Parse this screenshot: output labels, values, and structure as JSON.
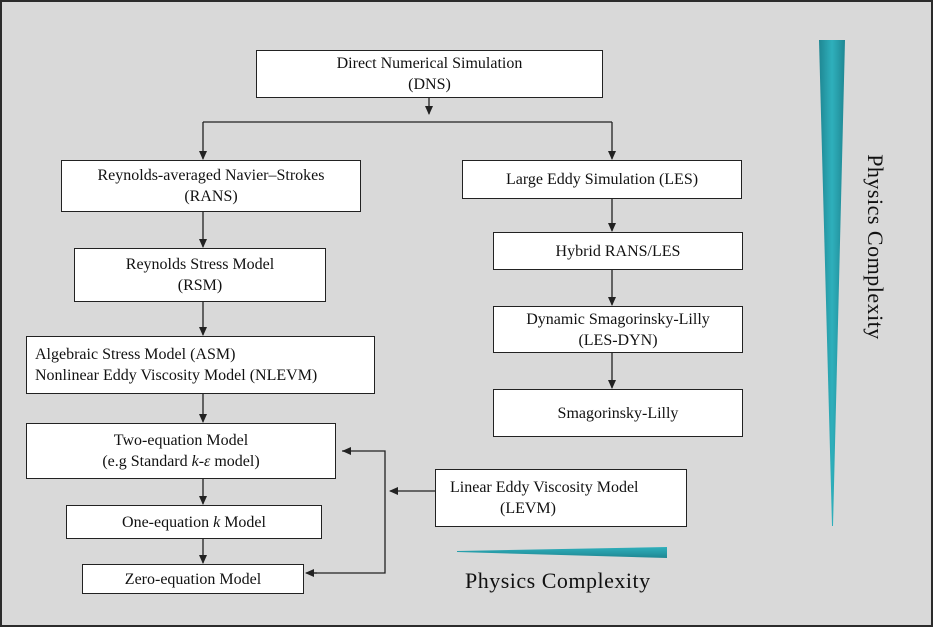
{
  "nodes": {
    "dns": {
      "line1": "Direct Numerical Simulation",
      "line2": "(DNS)"
    },
    "rans": {
      "line1": "Reynolds-averaged Navier–Strokes",
      "line2": "(RANS)"
    },
    "rsm": {
      "line1": "Reynolds Stress Model",
      "line2": "(RSM)"
    },
    "asm": {
      "line1": "Algebraic Stress Model (ASM)",
      "line2": "Nonlinear Eddy Viscosity Model (NLEVM)"
    },
    "two_eq": {
      "line1": "Two-equation Model",
      "line2_prefix": "(e.g Standard ",
      "line2_math": "k-ε",
      "line2_suffix": " model)"
    },
    "one_eq": {
      "prefix": "One-equation ",
      "math": "k",
      "suffix": " Model"
    },
    "zero_eq": {
      "line1": "Zero-equation Model"
    },
    "les": {
      "line1": "Large Eddy Simulation (LES)"
    },
    "hybrid": {
      "line1": "Hybrid RANS/LES"
    },
    "dyn": {
      "line1": "Dynamic Smagorinsky-Lilly",
      "line2": "(LES-DYN)"
    },
    "smag": {
      "line1": "Smagorinsky-Lilly"
    },
    "levm": {
      "line1": "Linear Eddy Viscosity Model",
      "line2": "(LEVM)"
    }
  },
  "labels": {
    "horizontal": "Physics Complexity",
    "vertical": "Physics Complexity"
  },
  "colors": {
    "background": "#d9d9d9",
    "wedge": "#2aa0ad",
    "wedge_dark": "#1f7f8a",
    "line": "#222222"
  }
}
